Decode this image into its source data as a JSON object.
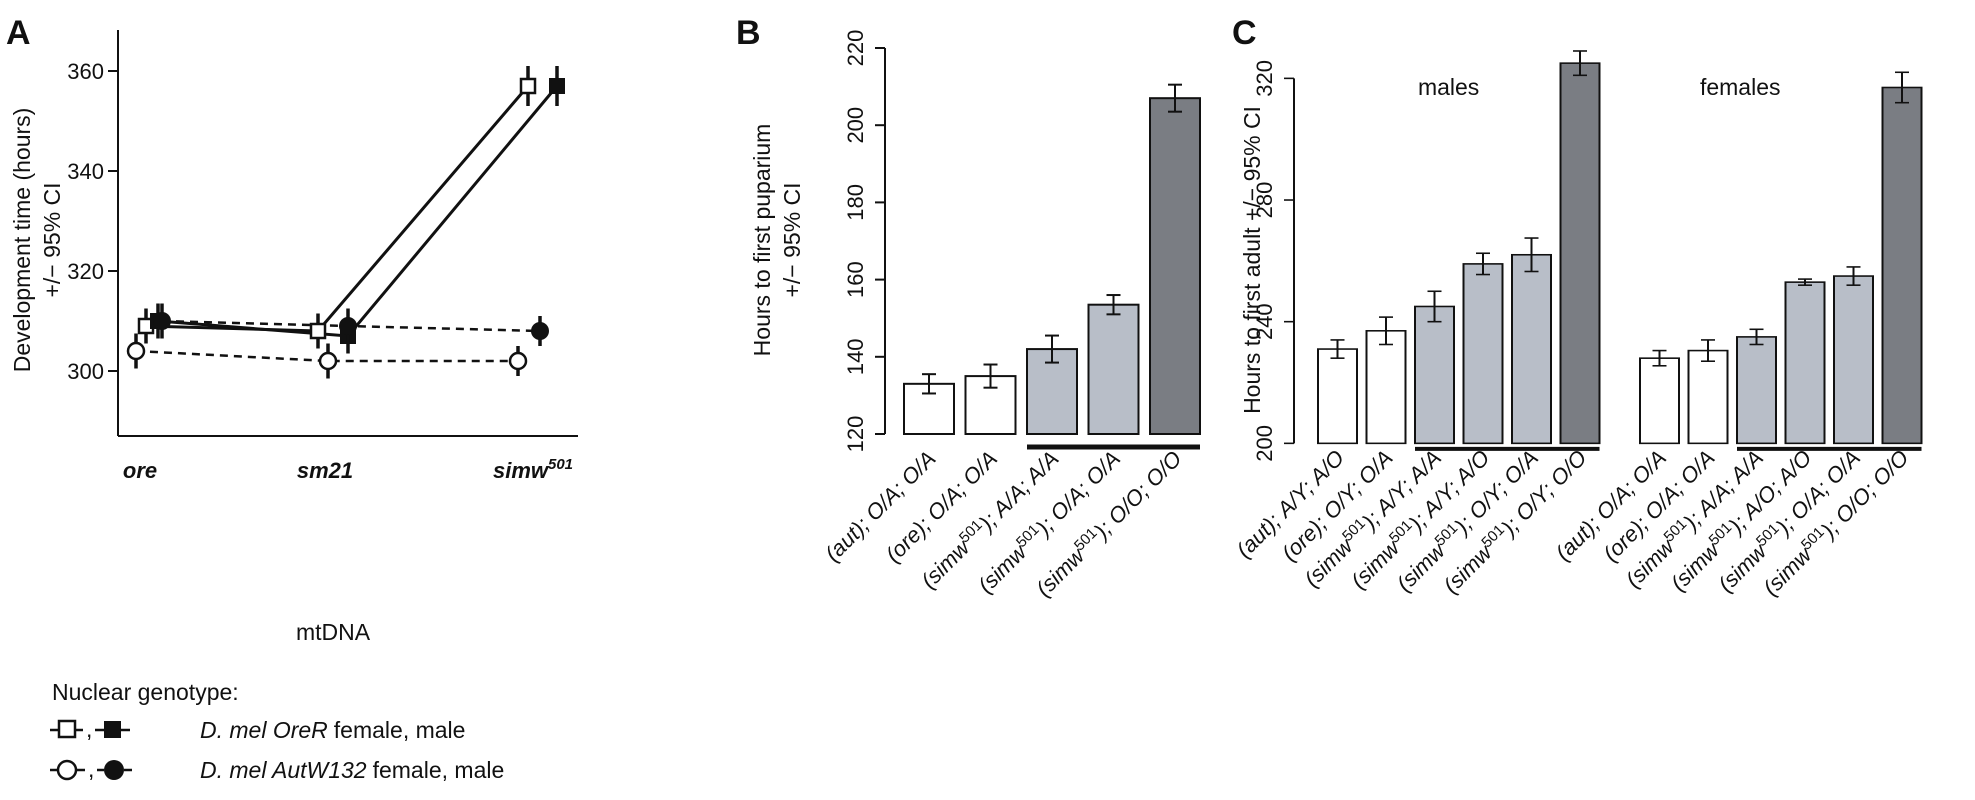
{
  "figure": {
    "panels": [
      "A",
      "B",
      "C"
    ]
  },
  "legend": {
    "title": "Nuclear genotype:",
    "entries": [
      {
        "glyph": "-□-,-■-",
        "species": "D. mel OreR",
        "sexes": "female, male",
        "line": "solid"
      },
      {
        "glyph": "-○-,-●-",
        "species": "D. mel AutW132",
        "sexes": "female, male",
        "line": "dashed"
      }
    ]
  },
  "chart_data": [
    {
      "panel": "A",
      "type": "line",
      "xlabel": "mtDNA",
      "ylabel": "Development time (hours)",
      "ylabel2": "+/− 95% CI",
      "categories": [
        "ore",
        "sm21",
        "simw"
      ],
      "category_superscripts": [
        "",
        "",
        "501"
      ],
      "ylim": [
        290,
        360
      ],
      "yticks": [
        300,
        320,
        340,
        360
      ],
      "series": [
        {
          "key": "ore_female",
          "marker": "square-open",
          "line": "solid",
          "values": [
            309,
            308,
            357
          ],
          "ci": [
            3.5,
            3.5,
            4
          ]
        },
        {
          "key": "ore_male",
          "marker": "square-filled",
          "line": "solid",
          "values": [
            310,
            307,
            357
          ],
          "ci": [
            3.5,
            3.5,
            4
          ]
        },
        {
          "key": "aut_female",
          "marker": "circle-open",
          "line": "dashed",
          "values": [
            304,
            302,
            302
          ],
          "ci": [
            3.5,
            3.5,
            3
          ]
        },
        {
          "key": "aut_male",
          "marker": "circle-filled",
          "line": "dashed",
          "values": [
            310,
            309,
            308
          ],
          "ci": [
            3.5,
            3.5,
            3
          ]
        }
      ]
    },
    {
      "panel": "B",
      "type": "bar",
      "ylabel": "Hours to first puparium",
      "ylabel2": "+/− 95% CI",
      "ylim": [
        120,
        220
      ],
      "yticks": [
        120,
        140,
        160,
        180,
        200,
        220
      ],
      "categories": [
        {
          "pre": "(aut); ",
          "sup": "",
          "post": "O/A; O/A"
        },
        {
          "pre": "(ore); ",
          "sup": "",
          "post": "O/A; O/A"
        },
        {
          "pre": "(simw",
          "sup": "501",
          "post": "); A/A; A/A"
        },
        {
          "pre": "(simw",
          "sup": "501",
          "post": "); O/A; O/A"
        },
        {
          "pre": "(simw",
          "sup": "501",
          "post": "); O/O; O/O"
        }
      ],
      "values": [
        133,
        135,
        142,
        153.5,
        207
      ],
      "ci": [
        2.5,
        3,
        3.5,
        2.5,
        3.5
      ],
      "fills": [
        "#ffffff",
        "#ffffff",
        "#b8bec8",
        "#b8bec8",
        "#7a7d83"
      ],
      "bracket": [
        2,
        4
      ]
    },
    {
      "panel": "C",
      "type": "bar",
      "ylabel": "Hours to first adult +/− 95% CI",
      "ylim": [
        200,
        330
      ],
      "yticks": [
        200,
        240,
        280,
        320
      ],
      "groups": [
        {
          "name": "males",
          "categories": [
            {
              "pre": "(aut); ",
              "sup": "",
              "post": "A/Y; A/O"
            },
            {
              "pre": "(ore); ",
              "sup": "",
              "post": "O/Y; O/A"
            },
            {
              "pre": "(simw",
              "sup": "501",
              "post": "); A/Y; A/A"
            },
            {
              "pre": "(simw",
              "sup": "501",
              "post": "); A/Y; A/O"
            },
            {
              "pre": "(simw",
              "sup": "501",
              "post": "); O/Y; O/A"
            },
            {
              "pre": "(simw",
              "sup": "501",
              "post": "); O/Y; O/O"
            }
          ],
          "values": [
            231,
            237,
            245,
            259,
            262,
            325
          ],
          "ci": [
            3,
            4.5,
            5,
            3.5,
            5.5,
            4
          ],
          "fills": [
            "#ffffff",
            "#ffffff",
            "#b8bec8",
            "#b8bec8",
            "#b8bec8",
            "#7a7d83"
          ],
          "bracket": [
            2,
            5
          ]
        },
        {
          "name": "females",
          "categories": [
            {
              "pre": "(aut); ",
              "sup": "",
              "post": "O/A; O/A"
            },
            {
              "pre": "(ore); ",
              "sup": "",
              "post": "O/A; O/A"
            },
            {
              "pre": "(simw",
              "sup": "501",
              "post": "); A/A; A/A"
            },
            {
              "pre": "(simw",
              "sup": "501",
              "post": "); A/O; A/O"
            },
            {
              "pre": "(simw",
              "sup": "501",
              "post": "); O/A; O/A"
            },
            {
              "pre": "(simw",
              "sup": "501",
              "post": "); O/O; O/O"
            }
          ],
          "values": [
            228,
            230.5,
            235,
            253,
            255,
            317
          ],
          "ci": [
            2.5,
            3.5,
            2.5,
            1,
            3,
            5
          ],
          "fills": [
            "#ffffff",
            "#ffffff",
            "#b8bec8",
            "#b8bec8",
            "#b8bec8",
            "#7a7d83"
          ],
          "bracket": [
            2,
            5
          ]
        }
      ]
    }
  ]
}
